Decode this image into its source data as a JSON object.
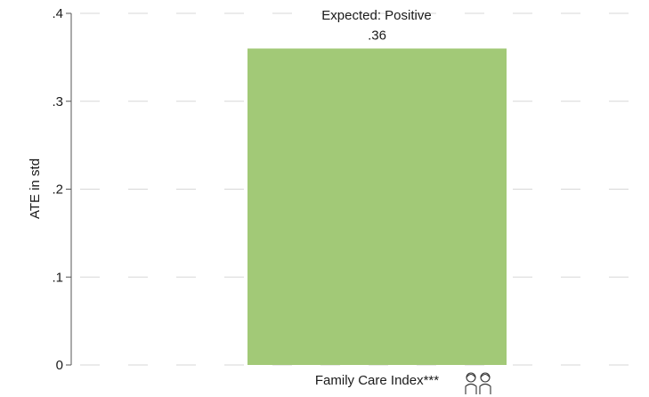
{
  "chart_data": {
    "type": "bar",
    "categories": [
      "Family Care Index***"
    ],
    "values": [
      0.36
    ],
    "value_labels": [
      ".36"
    ],
    "ylabel": "ATE in std",
    "ylim": [
      0,
      0.4
    ],
    "yticks": [
      0,
      0.1,
      0.2,
      0.3,
      0.4
    ],
    "ytick_labels": [
      "0",
      ".1",
      ".2",
      ".3",
      ".4"
    ],
    "annotation": "Expected: Positive",
    "grid": true,
    "bar_color": "#a2c977",
    "category_icon": "family-icon"
  }
}
